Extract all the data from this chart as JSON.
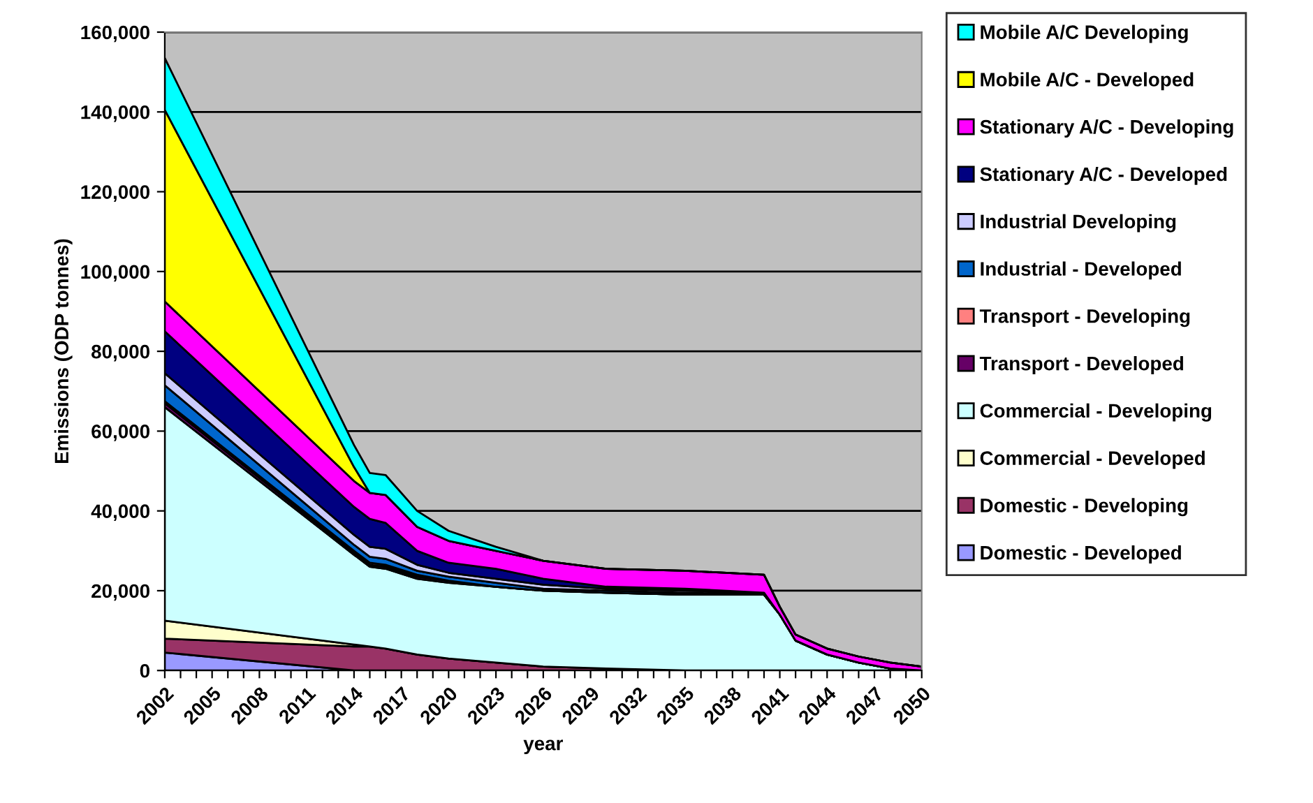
{
  "chart_data": {
    "type": "area",
    "stacked": true,
    "xlabel": "year",
    "ylabel": "Emissions (ODP tonnes)",
    "x": [
      2002,
      2014,
      2015,
      2016,
      2018,
      2020,
      2023,
      2026,
      2030,
      2035,
      2040,
      2041,
      2042,
      2044,
      2046,
      2048,
      2050
    ],
    "xlim": [
      2002,
      2050
    ],
    "xticks": [
      2002,
      {
        "value": 2003,
        "label": null
      },
      {
        "value": 2004,
        "label": null
      },
      2005,
      {
        "value": 2006,
        "label": null
      },
      {
        "value": 2007,
        "label": null
      },
      2008,
      {
        "value": 2009,
        "label": null
      },
      {
        "value": 2010,
        "label": null
      },
      2011,
      {
        "value": 2012,
        "label": null
      },
      {
        "value": 2013,
        "label": null
      },
      2014,
      {
        "value": 2015,
        "label": null
      },
      {
        "value": 2016,
        "label": null
      },
      2017,
      {
        "value": 2018,
        "label": null
      },
      {
        "value": 2019,
        "label": null
      },
      2020,
      {
        "value": 2021,
        "label": null
      },
      {
        "value": 2022,
        "label": null
      },
      2023,
      {
        "value": 2024,
        "label": null
      },
      {
        "value": 2025,
        "label": null
      },
      2026,
      {
        "value": 2027,
        "label": null
      },
      {
        "value": 2028,
        "label": null
      },
      2029,
      {
        "value": 2030,
        "label": null
      },
      {
        "value": 2031,
        "label": null
      },
      2032,
      {
        "value": 2033,
        "label": null
      },
      {
        "value": 2034,
        "label": null
      },
      2035,
      {
        "value": 2036,
        "label": null
      },
      {
        "value": 2037,
        "label": null
      },
      2038,
      {
        "value": 2039,
        "label": null
      },
      {
        "value": 2040,
        "label": null
      },
      2041,
      {
        "value": 2042,
        "label": null
      },
      {
        "value": 2043,
        "label": null
      },
      2044,
      {
        "value": 2045,
        "label": null
      },
      {
        "value": 2046,
        "label": null
      },
      2047,
      {
        "value": 2048,
        "label": null
      },
      {
        "value": 2049,
        "label": null
      },
      2050
    ],
    "ylim": [
      0,
      160000
    ],
    "yticks": [
      0,
      {
        "value": 20000,
        "label": "20,000"
      },
      {
        "value": 40000,
        "label": "40,000"
      },
      {
        "value": 60000,
        "label": "60,000"
      },
      {
        "value": 80000,
        "label": "80,000"
      },
      {
        "value": 100000,
        "label": "100,000"
      },
      {
        "value": 120000,
        "label": "120,000"
      },
      {
        "value": 140000,
        "label": "140,000"
      },
      {
        "value": 160000,
        "label": "160,000"
      }
    ],
    "grid": "y",
    "legend": "right",
    "series": [
      {
        "name": "Domestic - Developed",
        "color": "#9999ff",
        "values": [
          4500,
          0,
          0,
          0,
          0,
          0,
          0,
          0,
          0,
          0,
          0,
          0,
          0,
          0,
          0,
          0,
          0
        ]
      },
      {
        "name": "Domestic - Developing",
        "color": "#993366",
        "values": [
          3500,
          6000,
          6000,
          5500,
          4000,
          3000,
          2000,
          1000,
          500,
          0,
          0,
          0,
          0,
          0,
          0,
          0,
          0
        ]
      },
      {
        "name": "Commercial - Developed",
        "color": "#ffffcc",
        "values": [
          4500,
          500,
          0,
          0,
          0,
          0,
          0,
          0,
          0,
          0,
          0,
          0,
          0,
          0,
          0,
          0,
          0
        ]
      },
      {
        "name": "Commercial - Developing",
        "color": "#ccffff",
        "values": [
          53500,
          22500,
          20000,
          20000,
          19000,
          19000,
          19000,
          19000,
          19000,
          19000,
          19000,
          14000,
          7500,
          4000,
          2000,
          500,
          0
        ]
      },
      {
        "name": "Transport - Developed",
        "color": "#660066",
        "values": [
          1000,
          500,
          500,
          500,
          500,
          500,
          0,
          0,
          0,
          0,
          0,
          0,
          0,
          0,
          0,
          0,
          0
        ]
      },
      {
        "name": "Transport - Developing",
        "color": "#ff8080",
        "values": [
          500,
          500,
          500,
          500,
          500,
          0,
          0,
          0,
          0,
          0,
          0,
          0,
          0,
          0,
          0,
          0,
          0
        ]
      },
      {
        "name": "Industrial - Developed",
        "color": "#0066cc",
        "values": [
          4000,
          1500,
          1500,
          1500,
          1000,
          1000,
          1000,
          500,
          500,
          500,
          0,
          0,
          0,
          0,
          0,
          0,
          0
        ]
      },
      {
        "name": "Industrial Developing",
        "color": "#ccccff",
        "values": [
          3000,
          2500,
          2500,
          2500,
          1500,
          1000,
          1000,
          1000,
          500,
          500,
          500,
          0,
          0,
          0,
          0,
          0,
          0
        ]
      },
      {
        "name": "Stationary A/C - Developed",
        "color": "#000080",
        "values": [
          10500,
          7000,
          7000,
          6500,
          3500,
          2500,
          2500,
          1500,
          500,
          500,
          0,
          0,
          0,
          0,
          0,
          0,
          0
        ]
      },
      {
        "name": "Stationary A/C - Developing",
        "color": "#ff00ff",
        "values": [
          7500,
          6500,
          6500,
          7000,
          6000,
          5500,
          4500,
          4500,
          4500,
          4500,
          4500,
          2000,
          1500,
          1500,
          1500,
          1500,
          1000
        ]
      },
      {
        "name": "Mobile A/C - Developed",
        "color": "#ffff00",
        "values": [
          48000,
          3500,
          0,
          0,
          0,
          0,
          0,
          0,
          0,
          0,
          0,
          0,
          0,
          0,
          0,
          0,
          0
        ]
      },
      {
        "name": "Mobile A/C Developing",
        "color": "#00ffff",
        "values": [
          13000,
          5500,
          5000,
          5000,
          4000,
          2500,
          1000,
          0,
          0,
          0,
          0,
          0,
          0,
          0,
          0,
          0,
          0
        ]
      }
    ]
  }
}
